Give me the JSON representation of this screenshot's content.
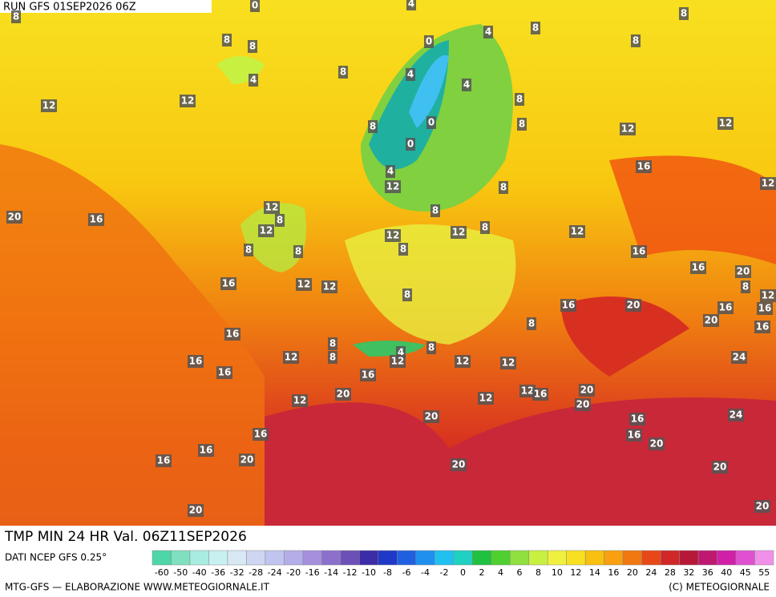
{
  "header": {
    "run": "RUN GFS 01SEP2026 06Z"
  },
  "footer": {
    "title": "TMP MIN 24 HR Val. 06Z11SEP2026",
    "source": "DATI NCEP GFS 0.25°",
    "credit": "MTG-GFS — ELABORAZIONE WWW.METEOGIORNALE.IT",
    "copyright": "(C) METEOGIORNALE"
  },
  "scale": {
    "ticks": [
      -60,
      -50,
      -40,
      -36,
      -32,
      -28,
      -24,
      -20,
      -16,
      -14,
      -12,
      -10,
      -8,
      -6,
      -4,
      -2,
      0,
      2,
      4,
      6,
      8,
      10,
      12,
      14,
      16,
      20,
      24,
      28,
      32,
      36,
      40,
      45,
      55
    ],
    "colors": [
      "#4fd6a8",
      "#7fe0c0",
      "#a8ece0",
      "#c8f0f0",
      "#d8e8f4",
      "#cfd6f2",
      "#c0c4ee",
      "#b4aee8",
      "#a490dc",
      "#8c70cc",
      "#6c50b8",
      "#3c2ca8",
      "#2038c8",
      "#2060e0",
      "#2090f0",
      "#20c0f0",
      "#20d0c0",
      "#20c040",
      "#50d030",
      "#90e040",
      "#c8f040",
      "#f0f040",
      "#f8e020",
      "#f8c010",
      "#f8a010",
      "#f07810",
      "#e84818",
      "#d02828",
      "#b81838",
      "#c01870",
      "#d020a8",
      "#e050d0",
      "#f090e8"
    ]
  },
  "map_labels": [
    0,
    4,
    8,
    8,
    8,
    8,
    0,
    4,
    8,
    8,
    4,
    8,
    4,
    4,
    12,
    12,
    8,
    8,
    0,
    8,
    12,
    12,
    0,
    4,
    16,
    12,
    8,
    12,
    20,
    16,
    12,
    8,
    12,
    8,
    12,
    12,
    8,
    12,
    8,
    8,
    8,
    16,
    16,
    20,
    16,
    12,
    12,
    8,
    8,
    12,
    16,
    20,
    16,
    16,
    20,
    8,
    16,
    16,
    8,
    8,
    4,
    8,
    16,
    12,
    12,
    12,
    12,
    16,
    12,
    16,
    20,
    12,
    16,
    20,
    12,
    20,
    20,
    16,
    16,
    24,
    16,
    16,
    20,
    16,
    20,
    20,
    20,
    20,
    20,
    24
  ]
}
